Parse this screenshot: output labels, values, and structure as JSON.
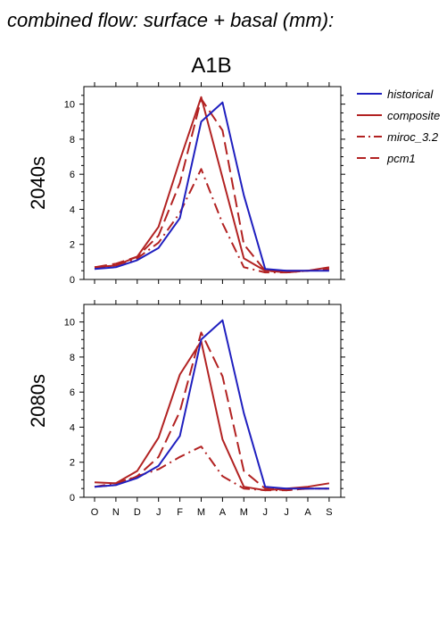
{
  "figure": {
    "title": "combined flow: surface + basal (mm):",
    "scenario": "A1B"
  },
  "legend": [
    {
      "name": "historical",
      "color": "#1f1fbf",
      "dash": "solid"
    },
    {
      "name": "composite",
      "color": "#b22222",
      "dash": "solid"
    },
    {
      "name": "miroc_3.2",
      "color": "#b22222",
      "dash": "dashdot"
    },
    {
      "name": "pcm1",
      "color": "#b22222",
      "dash": "dashed"
    }
  ],
  "chart_data": [
    {
      "type": "line",
      "row_label": "2040s",
      "categories": [
        "O",
        "N",
        "D",
        "J",
        "F",
        "M",
        "A",
        "M",
        "J",
        "J",
        "A",
        "S"
      ],
      "ylim": [
        0,
        11
      ],
      "yticks": [
        0,
        2,
        4,
        6,
        8,
        10
      ],
      "series": [
        {
          "name": "historical",
          "values": [
            0.6,
            0.7,
            1.1,
            1.8,
            3.5,
            9.0,
            10.1,
            4.8,
            0.6,
            0.5,
            0.5,
            0.5
          ]
        },
        {
          "name": "composite",
          "values": [
            0.7,
            0.8,
            1.3,
            3.0,
            6.8,
            10.4,
            5.8,
            1.2,
            0.5,
            0.5,
            0.5,
            0.7
          ]
        },
        {
          "name": "miroc_3.2",
          "values": [
            0.6,
            0.8,
            1.2,
            2.1,
            3.8,
            6.3,
            3.2,
            0.7,
            0.4,
            0.4,
            0.5,
            0.6
          ]
        },
        {
          "name": "pcm1",
          "values": [
            0.7,
            0.9,
            1.3,
            2.5,
            5.5,
            10.3,
            8.5,
            2.0,
            0.5,
            0.4,
            0.5,
            0.6
          ]
        }
      ]
    },
    {
      "type": "line",
      "row_label": "2080s",
      "categories": [
        "O",
        "N",
        "D",
        "J",
        "F",
        "M",
        "A",
        "M",
        "J",
        "J",
        "A",
        "S"
      ],
      "ylim": [
        0,
        11
      ],
      "yticks": [
        0,
        2,
        4,
        6,
        8,
        10
      ],
      "series": [
        {
          "name": "historical",
          "values": [
            0.6,
            0.7,
            1.1,
            1.8,
            3.5,
            9.0,
            10.1,
            4.8,
            0.6,
            0.5,
            0.5,
            0.5
          ]
        },
        {
          "name": "composite",
          "values": [
            0.85,
            0.8,
            1.5,
            3.4,
            7.0,
            8.9,
            3.3,
            0.6,
            0.4,
            0.5,
            0.6,
            0.8
          ]
        },
        {
          "name": "miroc_3.2",
          "values": [
            0.6,
            0.8,
            1.2,
            1.6,
            2.3,
            2.9,
            1.2,
            0.5,
            0.4,
            0.4,
            0.5,
            0.5
          ]
        },
        {
          "name": "pcm1",
          "values": [
            0.6,
            0.7,
            1.2,
            2.3,
            4.9,
            9.4,
            6.9,
            1.5,
            0.5,
            0.4,
            0.5,
            0.5
          ]
        }
      ]
    }
  ]
}
